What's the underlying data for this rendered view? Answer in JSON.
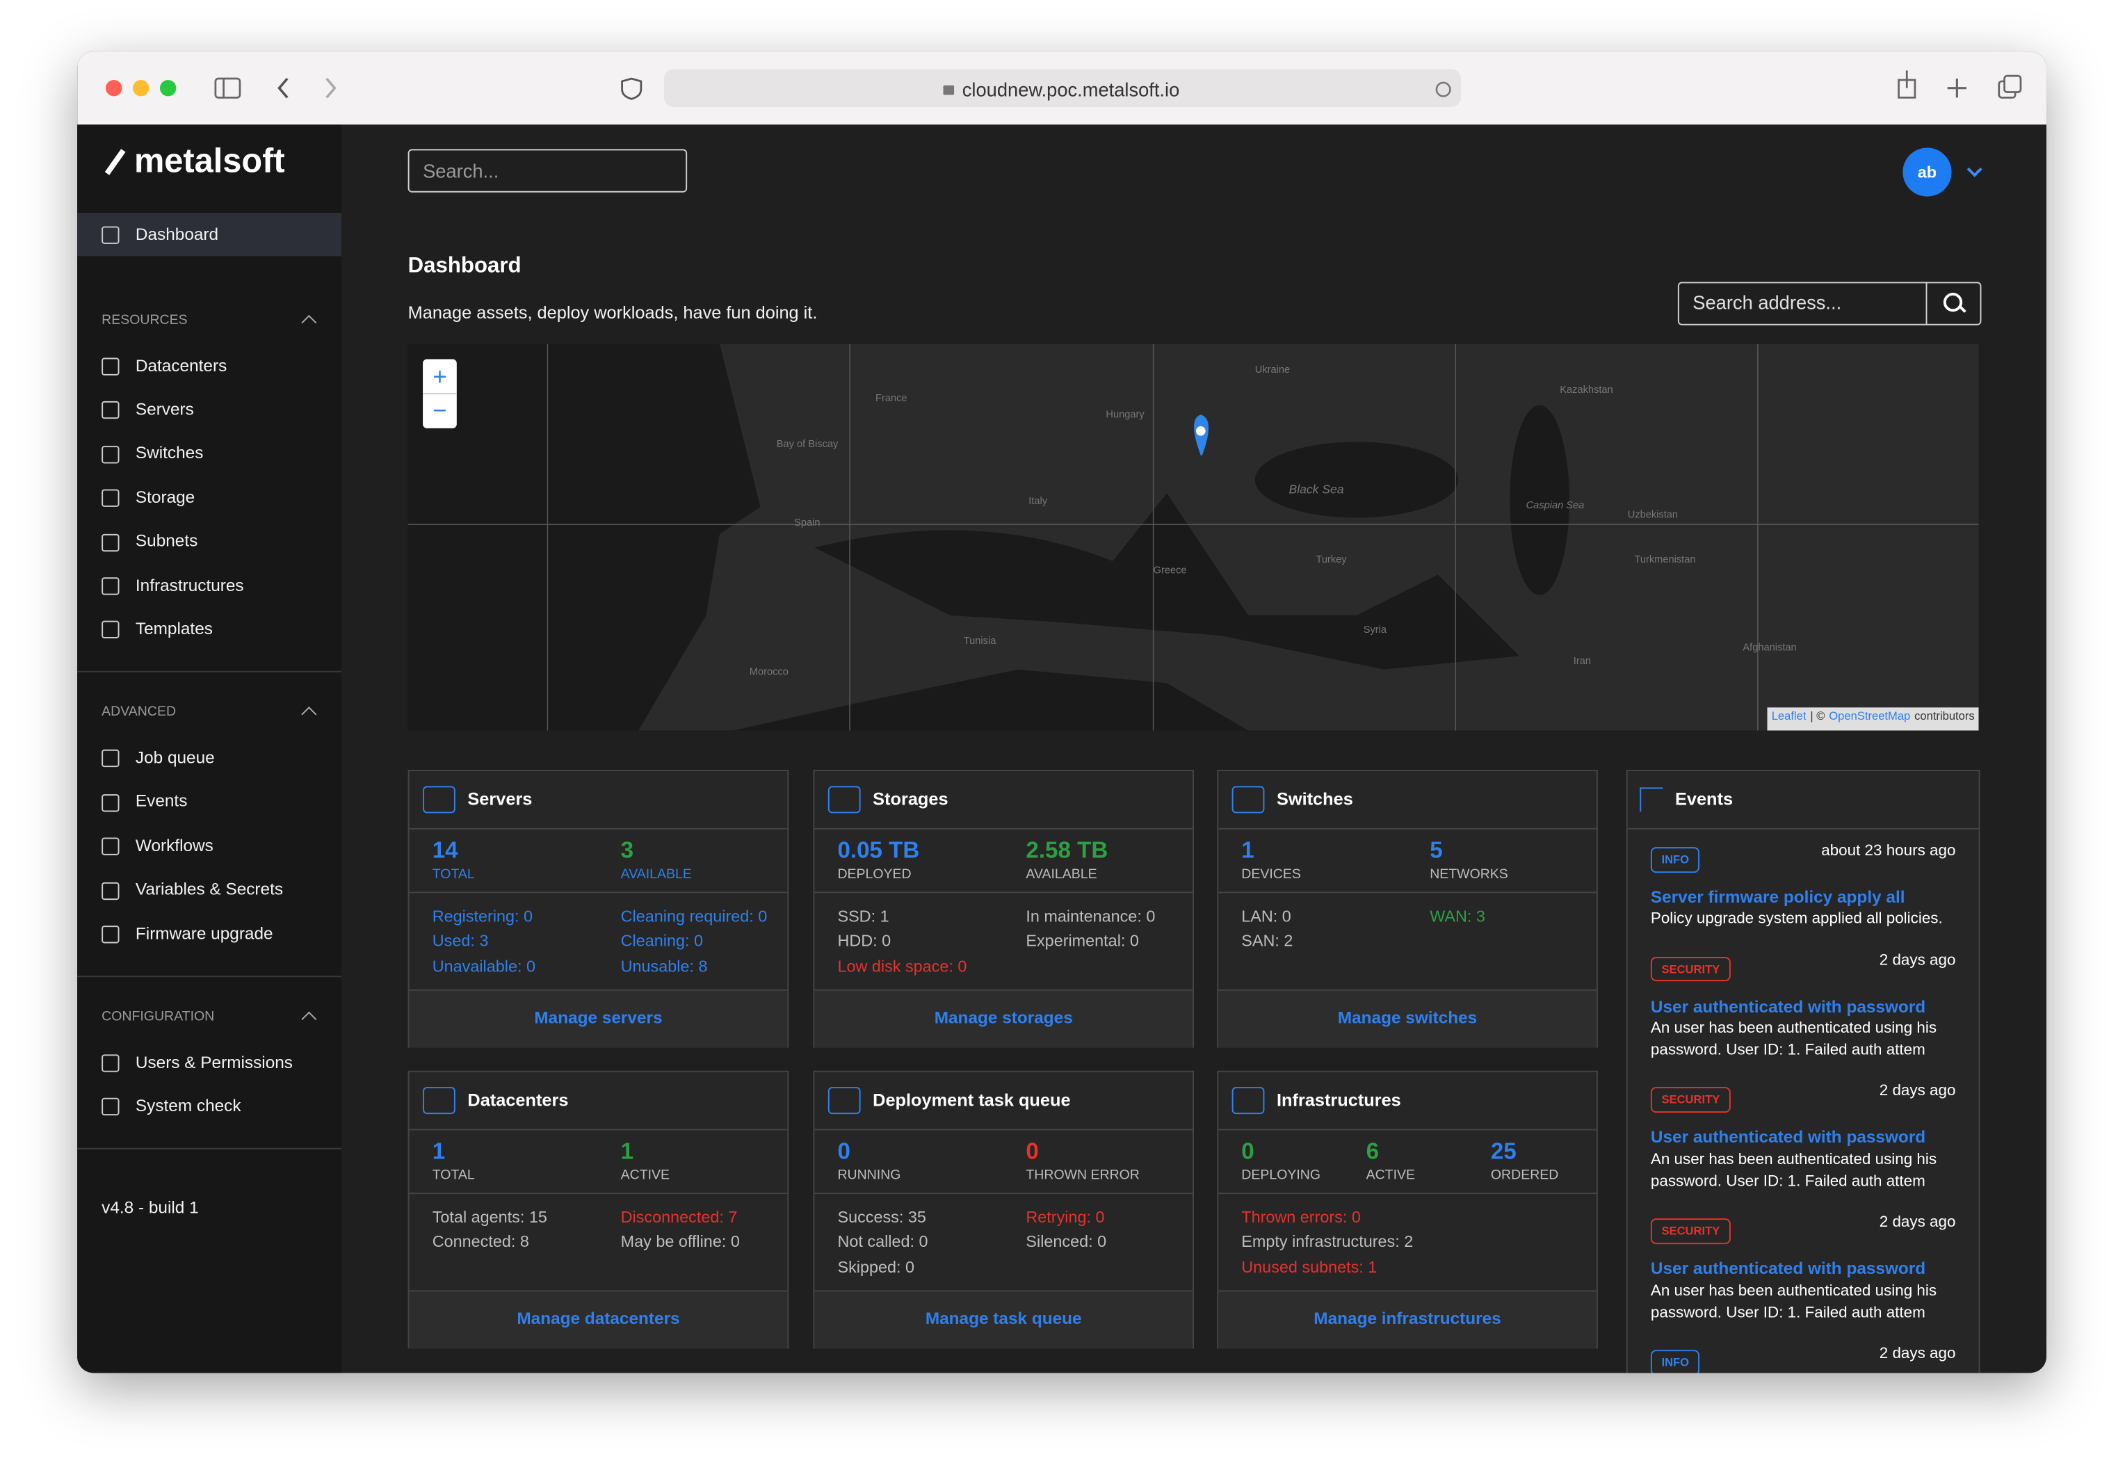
{
  "browser": {
    "url": "cloudnew.poc.metalsoft.io"
  },
  "sidebar": {
    "logo": "metalsoft",
    "sections": [
      {
        "items": [
          "Dashboard"
        ]
      },
      {
        "title": "RESOURCES",
        "items": [
          "Datacenters",
          "Servers",
          "Switches",
          "Storage",
          "Subnets",
          "Infrastructures",
          "Templates"
        ]
      },
      {
        "title": "ADVANCED",
        "items": [
          "Job queue",
          "Events",
          "Workflows",
          "Variables & Secrets",
          "Firmware upgrade"
        ]
      },
      {
        "title": "CONFIGURATION",
        "items": [
          "Users & Permissions",
          "System check"
        ]
      }
    ],
    "version": "v4.8 - build 1"
  },
  "header": {
    "search_placeholder": "Search...",
    "avatar": "ab"
  },
  "page": {
    "title": "Dashboard",
    "subtitle": "Manage assets, deploy workloads, have fun doing it.",
    "address_placeholder": "Search address..."
  },
  "map": {
    "zoom_in": "+",
    "zoom_out": "−",
    "labels": [
      "France",
      "Spain",
      "Italy",
      "Hungary",
      "Ukraine",
      "Black Sea",
      "Turkey",
      "Greece",
      "Syria",
      "Iran",
      "Kazakhstan",
      "Uzbekistan",
      "Turkmenistan",
      "Afghanistan",
      "Morocco",
      "Tunisia",
      "Caspian Sea",
      "Bay of Biscay"
    ],
    "attribution": [
      "Leaflet",
      "| ©",
      "OpenStreetMap",
      "contributors"
    ]
  },
  "cards": [
    {
      "title": "Servers",
      "stats": [
        {
          "value": "14",
          "label": "TOTAL",
          "color": "#2f80ed",
          "label_color": "#2f80ed"
        },
        {
          "value": "3",
          "label": "AVAILABLE",
          "color": "#2ea043",
          "label_color": "#2f80ed"
        }
      ],
      "details": [
        [
          {
            "text": "Registering: 0",
            "color": "#2f80ed"
          },
          {
            "text": "Used: 3",
            "color": "#2f80ed"
          },
          {
            "text": "Unavailable: 0",
            "color": "#2f80ed"
          }
        ],
        [
          {
            "text": "Cleaning required: 0",
            "color": "#2f80ed"
          },
          {
            "text": "Cleaning: 0",
            "color": "#2f80ed"
          },
          {
            "text": "Unusable: 8",
            "color": "#2f80ed"
          }
        ]
      ],
      "link": "Manage servers"
    },
    {
      "title": "Storages",
      "stats": [
        {
          "value": "0.05 TB",
          "label": "DEPLOYED",
          "color": "#2f80ed",
          "label_color": "#bdbdbd"
        },
        {
          "value": "2.58 TB",
          "label": "AVAILABLE",
          "color": "#2ea043",
          "label_color": "#bdbdbd"
        }
      ],
      "details": [
        [
          {
            "text": "SSD: 1",
            "color": "#bdbdbd"
          },
          {
            "text": "HDD: 0",
            "color": "#bdbdbd"
          },
          {
            "text": "Low disk space: 0",
            "color": "#e5322d"
          }
        ],
        [
          {
            "text": "In maintenance: 0",
            "color": "#bdbdbd"
          },
          {
            "text": "Experimental: 0",
            "color": "#bdbdbd"
          }
        ]
      ],
      "link": "Manage storages"
    },
    {
      "title": "Switches",
      "stats": [
        {
          "value": "1",
          "label": "DEVICES",
          "color": "#2f80ed",
          "label_color": "#bdbdbd"
        },
        {
          "value": "5",
          "label": "NETWORKS",
          "color": "#2f80ed",
          "label_color": "#bdbdbd"
        }
      ],
      "details": [
        [
          {
            "text": "LAN: 0",
            "color": "#bdbdbd"
          },
          {
            "text": "SAN: 2",
            "color": "#bdbdbd"
          }
        ],
        [
          {
            "text": "WAN: 3",
            "color": "#2ea043"
          }
        ]
      ],
      "link": "Manage switches"
    },
    {
      "title": "Datacenters",
      "stats": [
        {
          "value": "1",
          "label": "TOTAL",
          "color": "#2f80ed",
          "label_color": "#bdbdbd"
        },
        {
          "value": "1",
          "label": "ACTIVE",
          "color": "#2ea043",
          "label_color": "#bdbdbd"
        }
      ],
      "details": [
        [
          {
            "text": "Total agents: 15",
            "color": "#bdbdbd"
          },
          {
            "text": "Connected: 8",
            "color": "#bdbdbd"
          }
        ],
        [
          {
            "text": "Disconnected: 7",
            "color": "#e5322d"
          },
          {
            "text": "May be offline: 0",
            "color": "#bdbdbd"
          }
        ]
      ],
      "link": "Manage datacenters"
    },
    {
      "title": "Deployment task queue",
      "stats": [
        {
          "value": "0",
          "label": "RUNNING",
          "color": "#2f80ed",
          "label_color": "#bdbdbd"
        },
        {
          "value": "0",
          "label": "THROWN ERROR",
          "color": "#e5322d",
          "label_color": "#bdbdbd"
        }
      ],
      "details": [
        [
          {
            "text": "Success: 35",
            "color": "#bdbdbd"
          },
          {
            "text": "Not called: 0",
            "color": "#bdbdbd"
          },
          {
            "text": "Skipped: 0",
            "color": "#bdbdbd"
          }
        ],
        [
          {
            "text": "Retrying: 0",
            "color": "#e5322d"
          },
          {
            "text": "Silenced: 0",
            "color": "#bdbdbd"
          }
        ]
      ],
      "link": "Manage task queue"
    },
    {
      "title": "Infrastructures",
      "stats": [
        {
          "value": "0",
          "label": "DEPLOYING",
          "color": "#2ea043",
          "label_color": "#bdbdbd"
        },
        {
          "value": "6",
          "label": "ACTIVE",
          "color": "#2ea043",
          "label_color": "#bdbdbd"
        },
        {
          "value": "25",
          "label": "ORDERED",
          "color": "#2f80ed",
          "label_color": "#bdbdbd"
        }
      ],
      "details": [
        [
          {
            "text": "Thrown errors: 0",
            "color": "#e5322d"
          },
          {
            "text": "Empty infrastructures: 2",
            "color": "#bdbdbd"
          },
          {
            "text": "Unused subnets: 1",
            "color": "#e5322d"
          }
        ]
      ],
      "link": "Manage infrastructures"
    }
  ],
  "events": {
    "title": "Events",
    "items": [
      {
        "badge": "INFO",
        "color": "#2f80ed",
        "time": "about 23 hours ago",
        "title": "Server firmware policy apply all",
        "text": "Policy upgrade system applied all policies."
      },
      {
        "badge": "SECURITY",
        "color": "#e5322d",
        "time": "2 days ago",
        "title": "User authenticated with password",
        "text": "An user has been authenticated using his password. User ID: 1. Failed auth attem"
      },
      {
        "badge": "SECURITY",
        "color": "#e5322d",
        "time": "2 days ago",
        "title": "User authenticated with password",
        "text": "An user has been authenticated using his password. User ID: 1. Failed auth attem"
      },
      {
        "badge": "SECURITY",
        "color": "#e5322d",
        "time": "2 days ago",
        "title": "User authenticated with password",
        "text": "An user has been authenticated using his password. User ID: 1. Failed auth attem"
      },
      {
        "badge": "INFO",
        "color": "#2f80ed",
        "time": "2 days ago",
        "title": "",
        "text": ""
      }
    ]
  }
}
